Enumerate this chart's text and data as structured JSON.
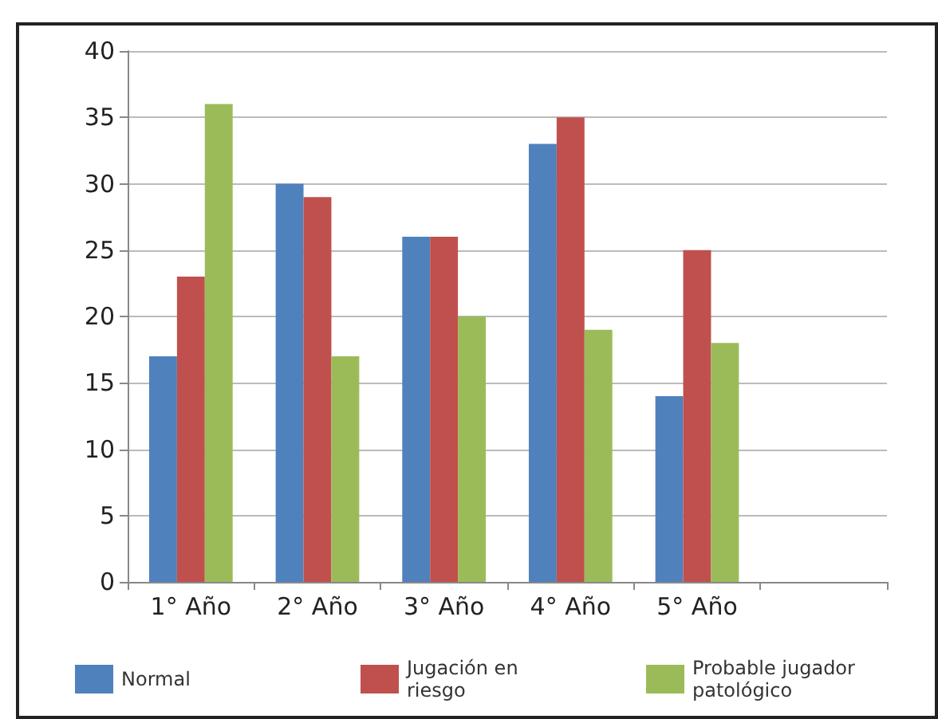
{
  "chart_data": {
    "type": "bar",
    "categories": [
      "1° Año",
      "2° Año",
      "3° Año",
      "4° Año",
      "5° Año",
      null
    ],
    "series": [
      {
        "name": "Normal",
        "color": "#4f81bd",
        "values": [
          17,
          30,
          26,
          33,
          14,
          null
        ]
      },
      {
        "name": "Jugación en riesgo",
        "color": "#c0504d",
        "values": [
          23,
          29,
          26,
          35,
          25,
          null
        ]
      },
      {
        "name": "Probable jugador patológico",
        "color": "#9bbb59",
        "values": [
          36,
          17,
          20,
          19,
          18,
          null
        ]
      }
    ],
    "ylim": [
      0,
      40
    ],
    "yticks": [
      0,
      5,
      10,
      15,
      20,
      25,
      30,
      35,
      40
    ],
    "grid": "y",
    "legend": "bottom"
  }
}
